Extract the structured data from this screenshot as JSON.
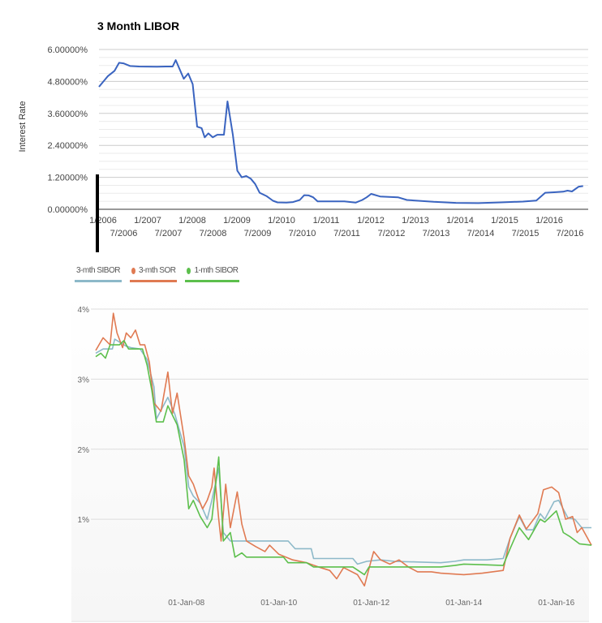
{
  "chart_data": [
    {
      "type": "line",
      "title": "3 Month LIBOR",
      "ylabel": "Interest Rate",
      "xlabel": "",
      "ylim": [
        0,
        6
      ],
      "xlim": [
        2006.0,
        2016.9
      ],
      "grid": true,
      "yticks": [
        {
          "v": 0,
          "label": "0.00000%"
        },
        {
          "v": 1.2,
          "label": "1.20000%"
        },
        {
          "v": 2.4,
          "label": "2.40000%"
        },
        {
          "v": 3.6,
          "label": "3.60000%"
        },
        {
          "v": 4.8,
          "label": "4.80000%"
        },
        {
          "v": 6,
          "label": "6.00000%"
        }
      ],
      "xticks_row1": [
        {
          "v": 2006,
          "label": "1/2006"
        },
        {
          "v": 2007,
          "label": "1/2007"
        },
        {
          "v": 2008,
          "label": "1/2008"
        },
        {
          "v": 2009,
          "label": "1/2009"
        },
        {
          "v": 2010,
          "label": "1/2010"
        },
        {
          "v": 2011,
          "label": "1/2011"
        },
        {
          "v": 2012,
          "label": "1/2012"
        },
        {
          "v": 2013,
          "label": "1/2013"
        },
        {
          "v": 2014,
          "label": "1/2014"
        },
        {
          "v": 2015,
          "label": "1/2015"
        },
        {
          "v": 2016,
          "label": "1/2016"
        }
      ],
      "xticks_row2": [
        {
          "v": 2006.5,
          "label": "7/2006"
        },
        {
          "v": 2007.5,
          "label": "7/2007"
        },
        {
          "v": 2008.5,
          "label": "7/2008"
        },
        {
          "v": 2009.5,
          "label": "7/2009"
        },
        {
          "v": 2010.5,
          "label": "7/2010"
        },
        {
          "v": 2011.5,
          "label": "7/2011"
        },
        {
          "v": 2012.5,
          "label": "7/2012"
        },
        {
          "v": 2013.5,
          "label": "7/2013"
        },
        {
          "v": 2014.5,
          "label": "7/2014"
        },
        {
          "v": 2015.5,
          "label": "7/2015"
        },
        {
          "v": 2016.5,
          "label": "7/2016"
        }
      ],
      "series": [
        {
          "name": "3 Month LIBOR",
          "color": "#3a64c0",
          "x": [
            2006.0,
            2006.2,
            2006.35,
            2006.45,
            2006.55,
            2006.7,
            2006.9,
            2007.3,
            2007.5,
            2007.65,
            2007.72,
            2007.9,
            2008.0,
            2008.1,
            2008.2,
            2008.3,
            2008.37,
            2008.45,
            2008.55,
            2008.65,
            2008.8,
            2008.88,
            2009.0,
            2009.1,
            2009.2,
            2009.3,
            2009.4,
            2009.5,
            2009.6,
            2009.75,
            2009.9,
            2010.0,
            2010.2,
            2010.35,
            2010.5,
            2010.6,
            2010.7,
            2010.8,
            2010.9,
            2011.2,
            2011.5,
            2011.75,
            2011.9,
            2012.0,
            2012.1,
            2012.3,
            2012.7,
            2012.9,
            2013.5,
            2014.0,
            2014.5,
            2015.0,
            2015.5,
            2015.8,
            2016.0,
            2016.2,
            2016.4,
            2016.5,
            2016.6,
            2016.75,
            2016.85
          ],
          "y": [
            4.6,
            5.0,
            5.2,
            5.5,
            5.48,
            5.38,
            5.36,
            5.35,
            5.36,
            5.36,
            5.6,
            4.9,
            5.1,
            4.7,
            3.1,
            3.05,
            2.7,
            2.85,
            2.7,
            2.8,
            2.8,
            4.05,
            2.8,
            1.45,
            1.2,
            1.25,
            1.15,
            0.95,
            0.62,
            0.5,
            0.32,
            0.26,
            0.25,
            0.27,
            0.35,
            0.53,
            0.52,
            0.45,
            0.3,
            0.3,
            0.3,
            0.25,
            0.35,
            0.45,
            0.58,
            0.48,
            0.45,
            0.35,
            0.28,
            0.24,
            0.23,
            0.26,
            0.29,
            0.33,
            0.62,
            0.64,
            0.66,
            0.7,
            0.67,
            0.85,
            0.87
          ]
        }
      ]
    },
    {
      "type": "line",
      "title": "",
      "ylim": [
        0,
        4
      ],
      "xlim": [
        2006.0,
        2016.8
      ],
      "grid": true,
      "legend": "top-left",
      "yticks": [
        {
          "v": 1,
          "label": "1%"
        },
        {
          "v": 2,
          "label": "2%"
        },
        {
          "v": 3,
          "label": "3%"
        },
        {
          "v": 4,
          "label": "4%"
        }
      ],
      "xticks": [
        {
          "v": 2008,
          "label": "01-Jan-08"
        },
        {
          "v": 2010,
          "label": "01-Jan-10"
        },
        {
          "v": 2012,
          "label": "01-Jan-12"
        },
        {
          "v": 2014,
          "label": "01-Jan-14"
        },
        {
          "v": 2016,
          "label": "01-Jan-16"
        }
      ],
      "series": [
        {
          "name": "3-mth SIBOR",
          "color": "#8db9c9",
          "x": [
            2006.04,
            2006.2,
            2006.4,
            2006.45,
            2006.6,
            2006.7,
            2006.8,
            2007.0,
            2007.15,
            2007.3,
            2007.35,
            2007.6,
            2007.75,
            2007.95,
            2008.05,
            2008.15,
            2008.3,
            2008.45,
            2008.55,
            2008.7,
            2008.8,
            2008.95,
            2009.5,
            2010.2,
            2010.35,
            2010.7,
            2010.75,
            2011.6,
            2011.7,
            2011.9,
            2012.2,
            2012.5,
            2013.0,
            2013.5,
            2013.8,
            2014.0,
            2014.5,
            2014.85,
            2015.0,
            2015.2,
            2015.35,
            2015.5,
            2015.65,
            2015.75,
            2015.95,
            2016.05,
            2016.25,
            2016.4,
            2016.55,
            2016.76
          ],
          "y": [
            3.37,
            3.43,
            3.43,
            3.57,
            3.51,
            3.47,
            3.45,
            3.43,
            3.28,
            2.89,
            2.43,
            2.74,
            2.5,
            2.04,
            1.46,
            1.33,
            1.23,
            1.0,
            1.27,
            1.73,
            0.81,
            0.69,
            0.69,
            0.69,
            0.58,
            0.58,
            0.44,
            0.44,
            0.36,
            0.4,
            0.42,
            0.4,
            0.39,
            0.38,
            0.4,
            0.42,
            0.42,
            0.44,
            0.73,
            1.04,
            0.85,
            0.85,
            1.08,
            1.0,
            1.25,
            1.27,
            1.02,
            1.0,
            0.88,
            0.88
          ]
        },
        {
          "name": "3-mth SOR",
          "color": "#e07a52",
          "x": [
            2006.04,
            2006.2,
            2006.35,
            2006.42,
            2006.5,
            2006.62,
            2006.7,
            2006.8,
            2006.9,
            2007.0,
            2007.1,
            2007.2,
            2007.3,
            2007.45,
            2007.6,
            2007.7,
            2007.8,
            2007.95,
            2008.05,
            2008.15,
            2008.25,
            2008.35,
            2008.45,
            2008.55,
            2008.6,
            2008.7,
            2008.75,
            2008.85,
            2008.95,
            2009.1,
            2009.2,
            2009.3,
            2009.5,
            2009.7,
            2009.8,
            2010.0,
            2010.3,
            2010.6,
            2010.9,
            2011.1,
            2011.25,
            2011.4,
            2011.7,
            2011.85,
            2012.0,
            2012.05,
            2012.2,
            2012.4,
            2012.6,
            2012.8,
            2013.0,
            2013.3,
            2013.5,
            2014.0,
            2014.4,
            2014.85,
            2015.0,
            2015.2,
            2015.35,
            2015.6,
            2015.72,
            2015.9,
            2016.05,
            2016.1,
            2016.2,
            2016.35,
            2016.45,
            2016.55,
            2016.76
          ],
          "y": [
            3.41,
            3.59,
            3.49,
            3.94,
            3.66,
            3.45,
            3.66,
            3.59,
            3.7,
            3.49,
            3.49,
            3.24,
            2.66,
            2.54,
            3.1,
            2.51,
            2.8,
            2.16,
            1.62,
            1.5,
            1.31,
            1.15,
            1.27,
            1.46,
            1.73,
            1.0,
            0.69,
            1.5,
            0.88,
            1.39,
            0.93,
            0.69,
            0.61,
            0.54,
            0.63,
            0.5,
            0.42,
            0.38,
            0.31,
            0.27,
            0.15,
            0.31,
            0.21,
            0.05,
            0.42,
            0.54,
            0.42,
            0.36,
            0.42,
            0.32,
            0.25,
            0.25,
            0.23,
            0.21,
            0.23,
            0.27,
            0.73,
            1.06,
            0.86,
            1.08,
            1.42,
            1.46,
            1.38,
            1.25,
            1.0,
            1.04,
            0.81,
            0.88,
            0.63
          ]
        },
        {
          "name": "1-mth SIBOR",
          "color": "#5cbf4c",
          "x": [
            2006.04,
            2006.15,
            2006.25,
            2006.35,
            2006.55,
            2006.65,
            2006.75,
            2007.05,
            2007.15,
            2007.25,
            2007.35,
            2007.5,
            2007.6,
            2007.8,
            2007.95,
            2008.05,
            2008.15,
            2008.3,
            2008.45,
            2008.55,
            2008.7,
            2008.8,
            2008.95,
            2009.05,
            2009.2,
            2009.3,
            2010.1,
            2010.2,
            2010.6,
            2010.75,
            2011.6,
            2011.85,
            2011.95,
            2013.0,
            2013.5,
            2013.8,
            2014.0,
            2014.5,
            2014.85,
            2015.0,
            2015.2,
            2015.4,
            2015.65,
            2015.75,
            2016.0,
            2016.15,
            2016.3,
            2016.5,
            2016.76
          ],
          "y": [
            3.32,
            3.37,
            3.3,
            3.49,
            3.49,
            3.55,
            3.43,
            3.43,
            3.2,
            2.85,
            2.39,
            2.39,
            2.62,
            2.35,
            1.85,
            1.15,
            1.27,
            1.04,
            0.88,
            1.0,
            1.89,
            0.69,
            0.81,
            0.46,
            0.52,
            0.46,
            0.46,
            0.38,
            0.38,
            0.32,
            0.32,
            0.21,
            0.32,
            0.32,
            0.32,
            0.34,
            0.36,
            0.35,
            0.34,
            0.58,
            0.88,
            0.71,
            1.0,
            0.96,
            1.12,
            0.81,
            0.75,
            0.65,
            0.63
          ]
        }
      ]
    }
  ]
}
